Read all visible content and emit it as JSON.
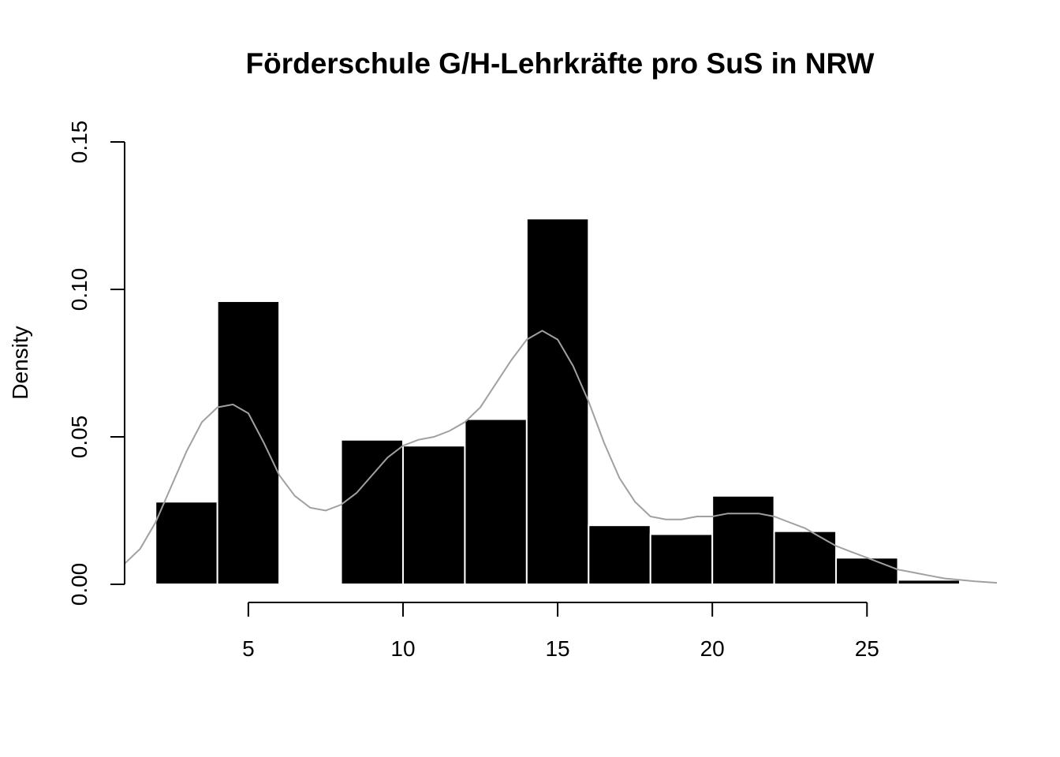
{
  "chart_data": {
    "type": "bar",
    "subtype": "histogram",
    "title": "Förderschule G/H-Lehrkräfte pro SuS in NRW",
    "xlabel": "",
    "ylabel": "Density",
    "xlim": [
      1,
      29.2
    ],
    "ylim": [
      0,
      0.15
    ],
    "x_ticks": [
      5,
      10,
      15,
      20,
      25
    ],
    "y_ticks": [
      0.0,
      0.05,
      0.1,
      0.15
    ],
    "x_tick_labels": [
      "5",
      "10",
      "15",
      "20",
      "25"
    ],
    "y_tick_labels": [
      "0.00",
      "0.05",
      "0.10",
      "0.15"
    ],
    "grid": false,
    "bar_color": "#000000",
    "bar_border_color": "#ffffff",
    "density_color": "#a0a0a0",
    "bins": [
      {
        "x0": 2,
        "x1": 4,
        "density": 0.028
      },
      {
        "x0": 4,
        "x1": 6,
        "density": 0.096
      },
      {
        "x0": 6,
        "x1": 8,
        "density": 0.0
      },
      {
        "x0": 8,
        "x1": 10,
        "density": 0.049
      },
      {
        "x0": 10,
        "x1": 12,
        "density": 0.047
      },
      {
        "x0": 12,
        "x1": 14,
        "density": 0.056
      },
      {
        "x0": 14,
        "x1": 16,
        "density": 0.124
      },
      {
        "x0": 16,
        "x1": 18,
        "density": 0.02
      },
      {
        "x0": 18,
        "x1": 20,
        "density": 0.017
      },
      {
        "x0": 20,
        "x1": 22,
        "density": 0.03
      },
      {
        "x0": 22,
        "x1": 24,
        "density": 0.018
      },
      {
        "x0": 24,
        "x1": 26,
        "density": 0.009
      },
      {
        "x0": 26,
        "x1": 28,
        "density": 0.0015
      }
    ],
    "density_curve": {
      "x": [
        1.0,
        1.5,
        2.0,
        2.5,
        3.0,
        3.5,
        4.0,
        4.5,
        5.0,
        5.5,
        6.0,
        6.5,
        7.0,
        7.5,
        8.0,
        8.5,
        9.0,
        9.5,
        10.0,
        10.5,
        11.0,
        11.5,
        12.0,
        12.5,
        13.0,
        13.5,
        14.0,
        14.5,
        15.0,
        15.5,
        16.0,
        16.5,
        17.0,
        17.5,
        18.0,
        18.5,
        19.0,
        19.5,
        20.0,
        20.5,
        21.0,
        21.5,
        22.0,
        22.5,
        23.0,
        23.5,
        24.0,
        24.5,
        25.0,
        25.5,
        26.0,
        26.5,
        27.0,
        27.5,
        28.0,
        28.5,
        29.2
      ],
      "y": [
        0.007,
        0.012,
        0.021,
        0.033,
        0.045,
        0.055,
        0.06,
        0.061,
        0.058,
        0.048,
        0.037,
        0.03,
        0.026,
        0.025,
        0.027,
        0.031,
        0.037,
        0.043,
        0.047,
        0.049,
        0.05,
        0.052,
        0.055,
        0.06,
        0.068,
        0.076,
        0.083,
        0.086,
        0.083,
        0.074,
        0.062,
        0.048,
        0.036,
        0.028,
        0.023,
        0.022,
        0.022,
        0.023,
        0.023,
        0.024,
        0.024,
        0.024,
        0.023,
        0.021,
        0.019,
        0.016,
        0.013,
        0.011,
        0.009,
        0.007,
        0.005,
        0.004,
        0.003,
        0.002,
        0.0015,
        0.001,
        0.0005
      ]
    }
  }
}
